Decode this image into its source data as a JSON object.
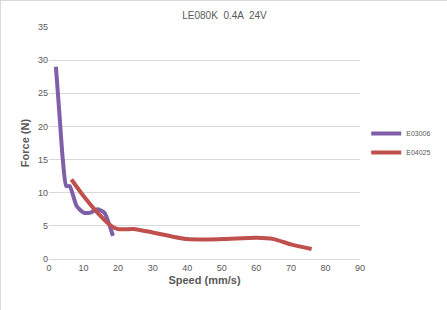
{
  "chart_data": {
    "type": "line",
    "title": "LE080K  0.4A  24V",
    "x_label": "Speed (mm/s)",
    "y_label": "Force (N)",
    "xlim": [
      0,
      90
    ],
    "xticks": [
      0,
      10,
      20,
      30,
      40,
      50,
      60,
      70,
      80,
      90
    ],
    "ylim": [
      0,
      35
    ],
    "yticks": [
      0,
      5,
      10,
      15,
      20,
      25,
      30,
      35
    ],
    "grid": true,
    "legend": "right",
    "series": [
      {
        "name": "E03006",
        "color": "#7f5fa8",
        "x": [
          2,
          3,
          4,
          5,
          6,
          8,
          10,
          12,
          14,
          16,
          18.5
        ],
        "values": [
          29,
          22,
          15,
          11,
          11,
          8,
          7,
          7,
          7.5,
          7,
          3.5
        ]
      },
      {
        "name": "E04025",
        "color": "#c0504d",
        "x": [
          6.5,
          10,
          14,
          18,
          20,
          25,
          30,
          40,
          50,
          60,
          65,
          70,
          76
        ],
        "values": [
          12,
          9.5,
          7,
          5,
          4.5,
          4.5,
          4,
          3,
          3,
          3.2,
          3,
          2.2,
          1.5
        ]
      }
    ]
  }
}
